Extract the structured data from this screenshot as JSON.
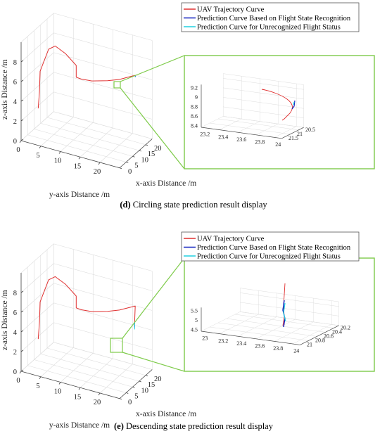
{
  "colors": {
    "trajectory": "#e03030",
    "prediction_recognized": "#1020c0",
    "prediction_unrecognized": "#20d0e0",
    "zoom_box": "#7ecb4a",
    "axis": "#444444",
    "grid": "#dddddd"
  },
  "chart_data": [
    {
      "type": "line",
      "panel": "d",
      "caption_letter": "(d)",
      "caption_text": " Circling state prediction result display",
      "legend": [
        "UAV Trajectory Curve",
        "Prediction Curve Based on Flight State Recognition",
        "Prediction Curve for Unrecognized Flight Status"
      ],
      "main_axes": {
        "xlabel": "x-axis Distance /m",
        "ylabel": "y-axis Distance /m",
        "zlabel": "z-axis Distance /m",
        "x_ticks": [
          "0",
          "5",
          "10",
          "15",
          "20"
        ],
        "y_ticks": [
          "0",
          "5",
          "10",
          "15",
          "20"
        ],
        "z_ticks": [
          "0",
          "2",
          "4",
          "6",
          "8"
        ],
        "xlim": [
          0,
          25
        ],
        "ylim": [
          0,
          25
        ],
        "zlim": [
          0,
          10
        ]
      },
      "inset_axes": {
        "x_ticks": [
          "23.2",
          "23.4",
          "23.6",
          "23.8",
          "24"
        ],
        "y_ticks": [
          "20.5",
          "21",
          "21.5"
        ],
        "z_ticks": [
          "8.4",
          "8.6",
          "8.8",
          "9",
          "9.2"
        ]
      },
      "series": [
        {
          "role": "trajectory",
          "points": [
            [
              1,
              4,
              3.6
            ],
            [
              2,
              4,
              5.2
            ],
            [
              2.5,
              4,
              7.2
            ],
            [
              3,
              6,
              9.6
            ],
            [
              5,
              7,
              9.8
            ],
            [
              7,
              9,
              9.0
            ],
            [
              9,
              11,
              7.8
            ],
            [
              9,
              11,
              6.6
            ],
            [
              10,
              12,
              6.4
            ],
            [
              12,
              14,
              6.2
            ],
            [
              15,
              17,
              6.2
            ],
            [
              18,
              19,
              6.2
            ],
            [
              22,
              21,
              6.3
            ],
            [
              23.5,
              21.2,
              6.2
            ]
          ]
        },
        {
          "role": "prediction_recognized",
          "points": [
            [
              23.6,
              21.2,
              6.15
            ],
            [
              23.8,
              21.1,
              6.0
            ]
          ]
        },
        {
          "role": "prediction_unrecognized",
          "points": [
            [
              23.6,
              21.2,
              6.15
            ],
            [
              23.7,
              21.2,
              6.1
            ]
          ]
        }
      ]
    },
    {
      "type": "line",
      "panel": "e",
      "caption_letter": "(e)",
      "caption_text": " Descending state prediction result display",
      "legend": [
        "UAV Trajectory Curve",
        "Prediction Curve Based on Flight State Recognition",
        "Prediction Curve for Unrecognized Flight Status"
      ],
      "main_axes": {
        "xlabel": "x-axis Distance /m",
        "ylabel": "y-axis Distance /m",
        "zlabel": "z-axis Distance /m",
        "x_ticks": [
          "0",
          "5",
          "10",
          "15",
          "20"
        ],
        "y_ticks": [
          "0",
          "5",
          "10",
          "15",
          "20"
        ],
        "z_ticks": [
          "0",
          "2",
          "4",
          "6",
          "8"
        ],
        "xlim": [
          0,
          25
        ],
        "ylim": [
          0,
          25
        ],
        "zlim": [
          0,
          10
        ]
      },
      "inset_axes": {
        "x_ticks": [
          "23",
          "23.2",
          "23.4",
          "23.6",
          "23.8",
          "24"
        ],
        "y_ticks": [
          "20.2",
          "20.4",
          "20.6",
          "20.8",
          "21"
        ],
        "z_ticks": [
          "4.5",
          "5",
          "5.5"
        ]
      },
      "series": [
        {
          "role": "trajectory",
          "points": [
            [
              1,
              4,
              3.6
            ],
            [
              2,
              4,
              5.2
            ],
            [
              2.5,
              4,
              7.2
            ],
            [
              3,
              6,
              9.6
            ],
            [
              5,
              7,
              9.8
            ],
            [
              7,
              9,
              9.0
            ],
            [
              9,
              11,
              7.8
            ],
            [
              9,
              11,
              6.6
            ],
            [
              10,
              12,
              6.4
            ],
            [
              12,
              14,
              6.2
            ],
            [
              15,
              17,
              6.2
            ],
            [
              18,
              19,
              6.2
            ],
            [
              22,
              21,
              6.3
            ],
            [
              23.5,
              21.2,
              6.2
            ],
            [
              23.6,
              21.0,
              4.5
            ]
          ]
        },
        {
          "role": "prediction_recognized",
          "points": [
            [
              23.6,
              21.0,
              4.5
            ],
            [
              23.6,
              21.0,
              4.0
            ]
          ]
        },
        {
          "role": "prediction_unrecognized",
          "points": [
            [
              23.6,
              21.0,
              4.5
            ],
            [
              23.6,
              21.0,
              3.8
            ]
          ]
        }
      ]
    }
  ]
}
